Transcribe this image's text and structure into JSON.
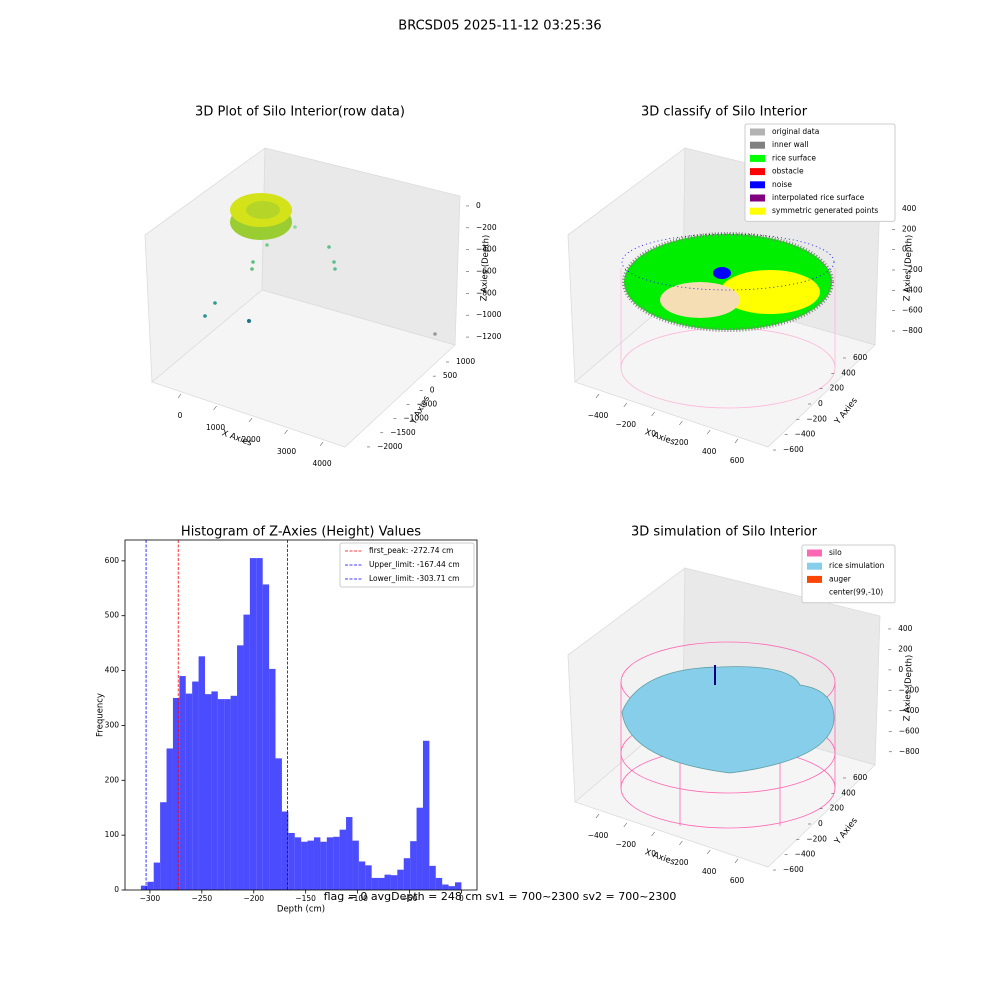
{
  "title": "BRCSD05 2025-11-12 03:25:36",
  "footer": "flag = 0     avgDepth = 248 cm  sv1 = 700~2300  sv2 = 700~2300",
  "chart_data": [
    {
      "type": "scatter3d",
      "title": "3D Plot of Silo Interior(row data)",
      "xlabel": "X Axies",
      "ylabel": "Y Axies",
      "zlabel": "Z Axies (Depth)",
      "xlim": [
        -500,
        4500
      ],
      "ylim": [
        -2200,
        1300
      ],
      "zlim": [
        -1300,
        100
      ],
      "xticks": [
        0,
        1000,
        2000,
        3000,
        4000
      ],
      "yticks": [
        {
          "value": 1000,
          "label": "1000"
        },
        {
          "value": 500,
          "label": "500"
        },
        0,
        {
          "value": -500,
          "label": "−500"
        },
        {
          "value": -1000,
          "label": "−1000"
        },
        {
          "value": -1500,
          "label": "−1500"
        },
        {
          "value": -2000,
          "label": "−2000"
        }
      ],
      "zticks": [
        0,
        {
          "value": -200,
          "label": "−200"
        },
        {
          "value": -400,
          "label": "−400"
        },
        {
          "value": -600,
          "label": "−600"
        },
        {
          "value": -800,
          "label": "−800"
        },
        {
          "value": -1000,
          "label": "−1000"
        },
        {
          "value": -1200,
          "label": "−1200"
        }
      ]
    },
    {
      "type": "scatter3d",
      "title": "3D classify of Silo Interior",
      "xlabel": "X Axies",
      "ylabel": "Y Axies",
      "zlabel": "Z Axies (Depth)",
      "xlim": [
        -500,
        700
      ],
      "ylim": [
        -700,
        700
      ],
      "zlim": [
        -900,
        500
      ],
      "xticks": [
        {
          "value": -400,
          "label": "−400"
        },
        {
          "value": -200,
          "label": "−200"
        },
        0,
        200,
        400,
        600
      ],
      "yticks": [
        600,
        400,
        200,
        0,
        {
          "value": -200,
          "label": "−200"
        },
        {
          "value": -400,
          "label": "−400"
        },
        {
          "value": -600,
          "label": "−600"
        }
      ],
      "zticks": [
        400,
        200,
        0,
        {
          "value": -200,
          "label": "−200"
        },
        {
          "value": -400,
          "label": "−400"
        },
        {
          "value": -600,
          "label": "−600"
        },
        {
          "value": -800,
          "label": "−800"
        }
      ],
      "legend": [
        {
          "name": "original data",
          "color": "#b3b3b3"
        },
        {
          "name": "inner wall",
          "color": "#808080"
        },
        {
          "name": "rice surface",
          "color": "#00ff00"
        },
        {
          "name": "obstacle",
          "color": "#ff0000"
        },
        {
          "name": "noise",
          "color": "#0000ff"
        },
        {
          "name": "interpolated rice surface",
          "color": "#800080"
        },
        {
          "name": "symmetric generated points",
          "color": "#ffff00"
        }
      ]
    },
    {
      "type": "histogram",
      "title": "Histogram of Z-Axies (Height) Values",
      "xlabel": "Depth (cm)",
      "ylabel": "Frequency",
      "color": "#0000ff",
      "bins": [
        -308.7,
        -302.53,
        -296.35,
        -290.18,
        -284.0,
        -277.83,
        -271.66,
        -265.48,
        -259.31,
        -253.13,
        -246.96,
        -240.79,
        -234.61,
        -228.44,
        -222.26,
        -216.09,
        -209.92,
        -203.74,
        -197.57,
        -191.39,
        -185.22,
        -179.05,
        -172.87,
        -166.7,
        -160.52,
        -154.35,
        -148.18,
        -142.0,
        -135.83,
        -129.65,
        -123.48,
        -117.31,
        -111.13,
        -104.96,
        -98.78,
        -92.61,
        -86.44,
        -80.26,
        -74.09,
        -67.91,
        -61.74,
        -55.57,
        -49.39,
        -43.22,
        -37.04,
        -30.87,
        -24.7,
        -18.52,
        -12.35,
        -6.17,
        0.0
      ],
      "values": [
        8,
        15,
        50,
        160,
        258,
        350,
        390,
        358,
        380,
        426,
        357,
        362,
        348,
        348,
        354,
        446,
        502,
        605,
        605,
        557,
        403,
        240,
        143,
        104,
        96,
        88,
        90,
        96,
        88,
        96,
        97,
        110,
        133,
        90,
        52,
        45,
        22,
        22,
        28,
        27,
        37,
        58,
        89,
        150,
        272,
        44,
        22,
        10,
        7,
        14
      ],
      "xlim": [
        -324,
        15
      ],
      "ylim": [
        0,
        638
      ],
      "xticks": [
        {
          "value": -300,
          "label": "−300"
        },
        {
          "value": -250,
          "label": "−250"
        },
        {
          "value": -200,
          "label": "−200"
        },
        {
          "value": -150,
          "label": "−150"
        },
        {
          "value": -100,
          "label": "−100"
        },
        {
          "value": -50,
          "label": "−50"
        },
        0
      ],
      "yticks": [
        0,
        100,
        200,
        300,
        400,
        500,
        600
      ],
      "lines": [
        {
          "name": "first_peak: -272.74 cm",
          "value": -272.74,
          "color": "#ff0000"
        },
        {
          "name": "Upper_limit: -167.44 cm",
          "value": -167.44,
          "color": "#0000ff"
        },
        {
          "name": "Lower_limit: -303.71 cm",
          "value": -303.71,
          "color": "#0000ff"
        }
      ]
    },
    {
      "type": "surface3d",
      "title": "3D simulation of Silo Interior",
      "xlabel": "X Axies",
      "ylabel": "Y Axies",
      "zlabel": "Z Axies (Depth)",
      "xlim": [
        -500,
        700
      ],
      "ylim": [
        -700,
        700
      ],
      "zlim": [
        -900,
        500
      ],
      "xticks": [
        {
          "value": -400,
          "label": "−400"
        },
        {
          "value": -200,
          "label": "−200"
        },
        0,
        200,
        400,
        600
      ],
      "yticks": [
        600,
        400,
        200,
        0,
        {
          "value": -200,
          "label": "−200"
        },
        {
          "value": -400,
          "label": "−400"
        },
        {
          "value": -600,
          "label": "−600"
        }
      ],
      "zticks": [
        400,
        200,
        0,
        {
          "value": -200,
          "label": "−200"
        },
        {
          "value": -400,
          "label": "−400"
        },
        {
          "value": -600,
          "label": "−600"
        },
        {
          "value": -800,
          "label": "−800"
        }
      ],
      "legend": [
        {
          "name": "silo",
          "color": "#ff69b4"
        },
        {
          "name": "rice simulation",
          "color": "#87ceeb"
        },
        {
          "name": "auger",
          "color": "#ff4500"
        },
        {
          "name": "center(99,-10)",
          "color": "#ffffff"
        }
      ]
    }
  ]
}
